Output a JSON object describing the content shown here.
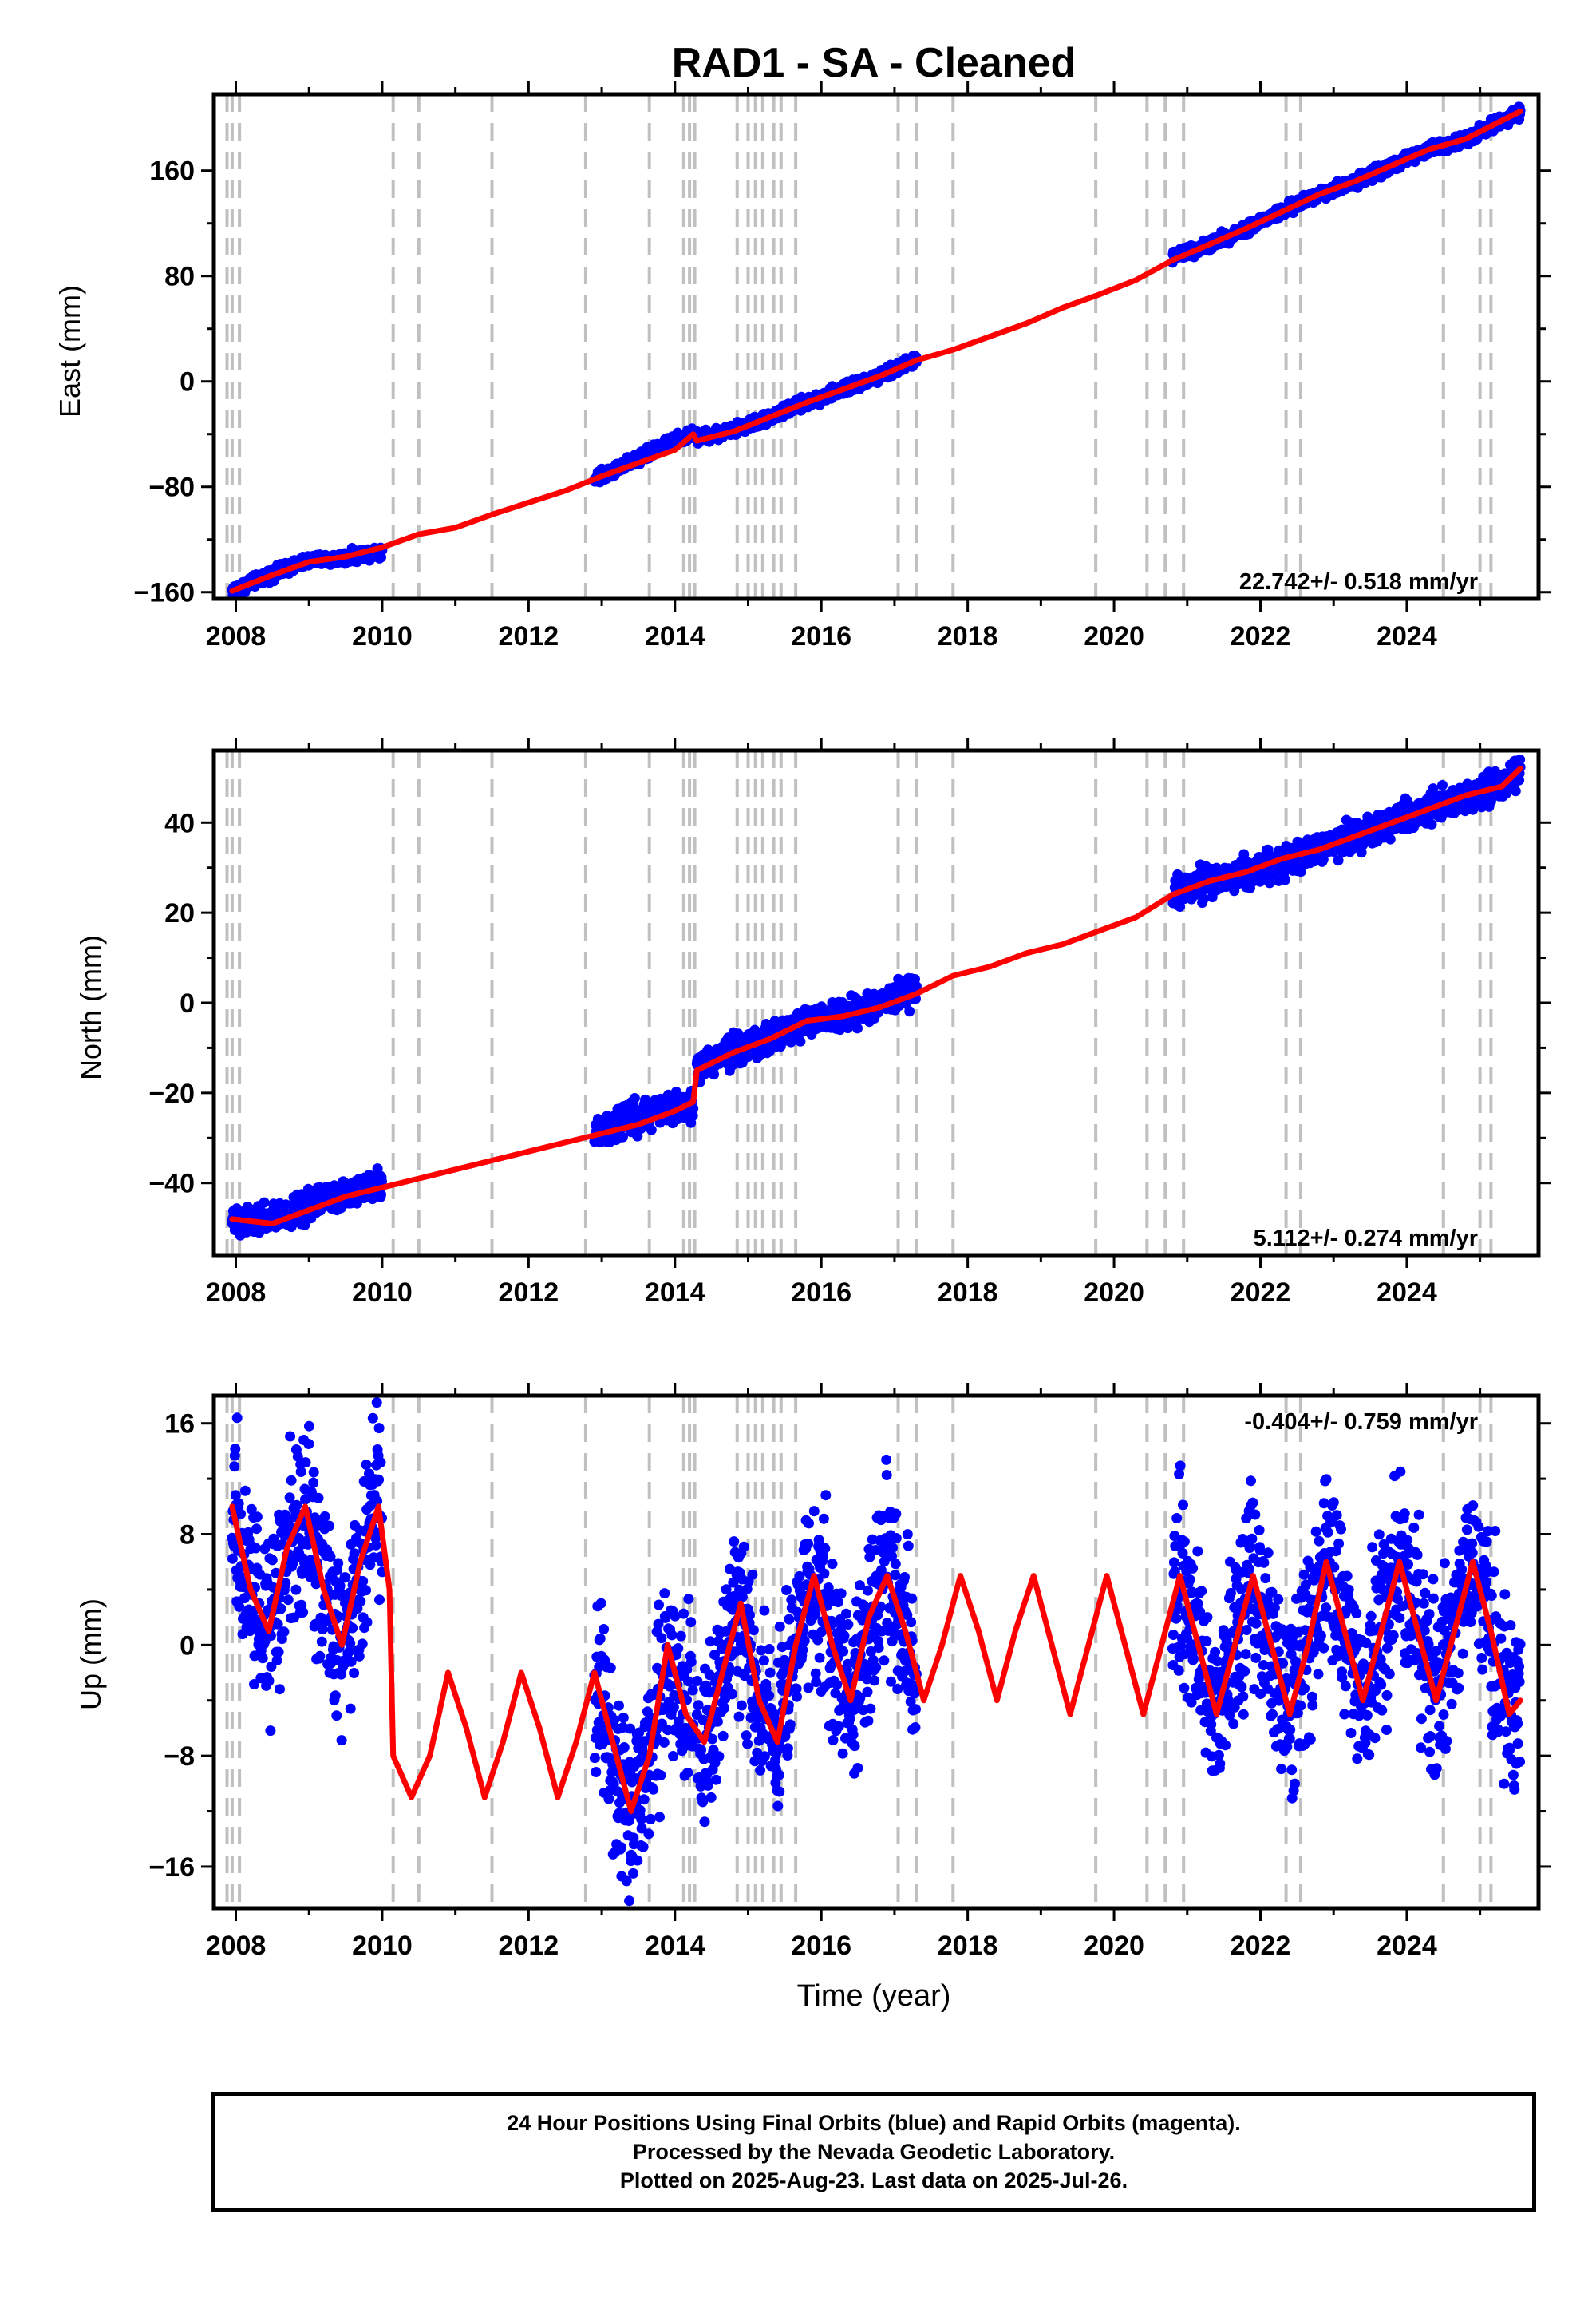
{
  "title": "RAD1  - SA - Cleaned",
  "colors": {
    "final_orbits": "#0000ff",
    "model": "#ff0000",
    "event_lines": "#c0c0c0"
  },
  "chart_data": [
    {
      "type": "scatter",
      "ylabel": "East (mm)",
      "xlabel": "",
      "rate_label": "22.742+/- 0.518 mm/yr",
      "rate_position": "bottom-right",
      "xlim": [
        2007.7,
        2025.8
      ],
      "ylim": [
        -165,
        218
      ],
      "x_ticks": [
        2008,
        2010,
        2012,
        2014,
        2016,
        2018,
        2020,
        2022,
        2024
      ],
      "x_tick_labels": [
        "2008",
        "2010",
        "2012",
        "2014",
        "2016",
        "2018",
        "2020",
        "2022",
        "2024"
      ],
      "y_ticks": [
        -160,
        -80,
        0,
        80,
        160
      ],
      "y_tick_labels": [
        "−160",
        "−80",
        "0",
        "80",
        "160"
      ],
      "series": [
        {
          "x": [
            2007.95,
            2008.5,
            2009.0,
            2009.5,
            2010.0
          ],
          "y": [
            -159,
            -146,
            -136,
            -134,
            -128
          ]
        },
        {
          "x": [
            2012.9,
            2013.3,
            2013.7,
            2014.0,
            2014.25
          ],
          "y": [
            -74,
            -63,
            -52,
            -45,
            -39
          ]
        },
        {
          "x": [
            2014.3,
            2014.8,
            2015.3,
            2015.8,
            2016.3,
            2016.8,
            2017.3
          ],
          "y": [
            -43,
            -37,
            -27,
            -16,
            -6,
            4,
            17
          ]
        },
        {
          "x": [
            2020.8,
            2021.3,
            2021.8,
            2022.3,
            2022.8,
            2023.3,
            2023.8,
            2024.3,
            2024.8,
            2025.3,
            2025.55
          ],
          "y": [
            94,
            104,
            116,
            129,
            142,
            152,
            164,
            176,
            184,
            198,
            205
          ]
        }
      ],
      "model": {
        "x": [
          2007.95,
          2008.5,
          2009.0,
          2009.5,
          2010.0,
          2010.5,
          2011.0,
          2011.5,
          2012.0,
          2012.5,
          2013.0,
          2013.5,
          2014.0,
          2014.25,
          2014.3,
          2014.8,
          2015.3,
          2015.8,
          2016.3,
          2016.8,
          2017.3,
          2017.8,
          2018.3,
          2018.8,
          2019.3,
          2019.8,
          2020.3,
          2020.8,
          2021.3,
          2021.8,
          2022.3,
          2022.8,
          2023.3,
          2023.8,
          2024.3,
          2024.8,
          2025.3,
          2025.55
        ],
        "y": [
          -159,
          -147,
          -137,
          -133,
          -126,
          -116,
          -111,
          -101,
          -92,
          -83,
          -72,
          -62,
          -52,
          -40,
          -45,
          -38,
          -27,
          -16,
          -6,
          4,
          16,
          24,
          34,
          44,
          56,
          66,
          77,
          92,
          104,
          116,
          129,
          142,
          152,
          164,
          176,
          184,
          198,
          205
        ]
      }
    },
    {
      "type": "scatter",
      "ylabel": "North (mm)",
      "xlabel": "",
      "rate_label": "5.112+/- 0.274 mm/yr",
      "rate_position": "bottom-right",
      "xlim": [
        2007.7,
        2025.8
      ],
      "ylim": [
        -56,
        56
      ],
      "x_ticks": [
        2008,
        2010,
        2012,
        2014,
        2016,
        2018,
        2020,
        2022,
        2024
      ],
      "x_tick_labels": [
        "2008",
        "2010",
        "2012",
        "2014",
        "2016",
        "2018",
        "2020",
        "2022",
        "2024"
      ],
      "y_ticks": [
        -40,
        -20,
        0,
        20,
        40
      ],
      "y_tick_labels": [
        "−40",
        "−20",
        "0",
        "20",
        "40"
      ],
      "series": [
        {
          "x": [
            2007.95,
            2008.5,
            2009.0,
            2009.5,
            2010.0
          ],
          "y": [
            -48,
            -48,
            -45,
            -42,
            -40
          ]
        },
        {
          "x": [
            2012.9,
            2013.3,
            2013.7,
            2014.0,
            2014.25
          ],
          "y": [
            -29,
            -26,
            -24,
            -23,
            -23
          ]
        },
        {
          "x": [
            2014.3,
            2014.8,
            2015.3,
            2015.8,
            2016.3,
            2016.8,
            2017.3
          ],
          "y": [
            -14,
            -11,
            -8,
            -4,
            -3,
            0,
            3
          ]
        },
        {
          "x": [
            2020.8,
            2021.3,
            2021.8,
            2022.3,
            2022.8,
            2023.3,
            2023.8,
            2024.3,
            2024.8,
            2025.3,
            2025.55
          ],
          "y": [
            24,
            27,
            29,
            31,
            34,
            37,
            40,
            43,
            46,
            48,
            51
          ]
        }
      ],
      "model": {
        "x": [
          2007.95,
          2008.5,
          2009.0,
          2009.5,
          2010.0,
          2010.5,
          2011.0,
          2011.5,
          2012.0,
          2012.5,
          2013.0,
          2013.5,
          2014.0,
          2014.25,
          2014.3,
          2014.8,
          2015.3,
          2015.8,
          2016.3,
          2016.8,
          2017.3,
          2017.8,
          2018.3,
          2018.8,
          2019.3,
          2019.8,
          2020.3,
          2020.8,
          2021.3,
          2021.8,
          2022.3,
          2022.8,
          2023.3,
          2023.8,
          2024.3,
          2024.8,
          2025.3,
          2025.55
        ],
        "y": [
          -48,
          -49,
          -46,
          -43,
          -41,
          -39,
          -37,
          -35,
          -33,
          -31,
          -29,
          -27,
          -24,
          -22,
          -15,
          -11,
          -8,
          -4,
          -3,
          -1,
          2,
          6,
          8,
          11,
          13,
          16,
          19,
          24,
          27,
          29,
          32,
          34,
          37,
          40,
          43,
          46,
          48,
          52
        ]
      }
    },
    {
      "type": "scatter",
      "ylabel": "Up (mm)",
      "xlabel": "Time (year)",
      "rate_label": "-0.404+/- 0.759 mm/yr",
      "rate_position": "top-right",
      "xlim": [
        2007.7,
        2025.8
      ],
      "ylim": [
        -19,
        18
      ],
      "x_ticks": [
        2008,
        2010,
        2012,
        2014,
        2016,
        2018,
        2020,
        2022,
        2024
      ],
      "x_tick_labels": [
        "2008",
        "2010",
        "2012",
        "2014",
        "2016",
        "2018",
        "2020",
        "2022",
        "2024"
      ],
      "y_ticks": [
        -16,
        -8,
        0,
        8,
        16
      ],
      "y_tick_labels": [
        "−16",
        "−8",
        "0",
        "8",
        "16"
      ],
      "series": [
        {
          "x": [
            2007.95,
            2008.25,
            2008.5,
            2008.75,
            2009.0,
            2009.25,
            2009.5,
            2009.75,
            2010.0
          ],
          "y": [
            9,
            4,
            1,
            6,
            10,
            4,
            0,
            5,
            9
          ]
        },
        {
          "x": [
            2012.9,
            2013.2,
            2013.5,
            2013.8,
            2014.1,
            2014.25
          ],
          "y": [
            -3,
            -9,
            -12,
            -4,
            2,
            -5
          ]
        },
        {
          "x": [
            2014.3,
            2014.6,
            2014.9,
            2015.2,
            2015.5,
            2015.8,
            2016.1,
            2016.4,
            2016.7,
            2017.0,
            2017.3
          ],
          "y": [
            -7,
            -2,
            2,
            -6,
            -3,
            5,
            2,
            -4,
            4,
            2,
            -4
          ]
        },
        {
          "x": [
            2020.8,
            2021.1,
            2021.4,
            2021.7,
            2022.0,
            2022.3,
            2022.6,
            2022.9,
            2023.2,
            2023.5,
            2023.8,
            2024.1,
            2024.4,
            2024.7,
            2025.0,
            2025.3,
            2025.55
          ],
          "y": [
            4,
            0,
            -5,
            3,
            4,
            -3,
            -5,
            5,
            2,
            -4,
            4,
            2,
            -5,
            4,
            3,
            -4,
            -4
          ]
        }
      ],
      "model": {
        "x": [
          2007.95,
          2008.2,
          2008.45,
          2008.7,
          2008.95,
          2009.2,
          2009.45,
          2009.7,
          2009.95,
          2010.1,
          2010.15,
          2010.4,
          2010.65,
          2010.9,
          2011.15,
          2011.4,
          2011.65,
          2011.9,
          2012.15,
          2012.4,
          2012.65,
          2012.9,
          2013.15,
          2013.4,
          2013.65,
          2013.9,
          2014.15,
          2014.4,
          2014.65,
          2014.9,
          2015.15,
          2015.4,
          2015.65,
          2015.9,
          2016.15,
          2016.4,
          2016.65,
          2016.9,
          2017.15,
          2017.4,
          2017.65,
          2017.9,
          2018.15,
          2018.4,
          2018.65,
          2018.9,
          2019.15,
          2019.4,
          2019.65,
          2019.9,
          2020.15,
          2020.4,
          2020.65,
          2020.9,
          2021.15,
          2021.4,
          2021.65,
          2021.9,
          2022.15,
          2022.4,
          2022.65,
          2022.9,
          2023.15,
          2023.4,
          2023.65,
          2023.9,
          2024.15,
          2024.4,
          2024.65,
          2024.9,
          2025.15,
          2025.4,
          2025.55
        ],
        "y": [
          10,
          4,
          1,
          7,
          10,
          4,
          0,
          6,
          10,
          4,
          -8,
          -11,
          -8,
          -2,
          -6,
          -11,
          -7,
          -2,
          -6,
          -11,
          -7,
          -2,
          -7,
          -12,
          -8,
          0,
          -5,
          -7,
          -2,
          3,
          -4,
          -7,
          0,
          5,
          0,
          -4,
          2,
          5,
          1,
          -4,
          0,
          5,
          1,
          -4,
          1,
          5,
          0,
          -5,
          0,
          5,
          0,
          -5,
          0,
          5,
          0,
          -5,
          0,
          5,
          0,
          -5,
          0,
          6,
          1,
          -4,
          1,
          6,
          1,
          -4,
          1,
          6,
          1,
          -5,
          -4
        ]
      }
    }
  ],
  "event_lines_x": [
    2007.88,
    2007.95,
    2008.05,
    2010.15,
    2010.5,
    2011.5,
    2012.78,
    2013.65,
    2014.12,
    2014.2,
    2014.27,
    2014.85,
    2015.0,
    2015.1,
    2015.2,
    2015.35,
    2015.45,
    2015.65,
    2017.05,
    2017.3,
    2017.8,
    2019.75,
    2020.45,
    2020.7,
    2020.95,
    2022.35,
    2022.55,
    2024.5,
    2025.0,
    2025.15
  ],
  "footer": {
    "line1": "24 Hour Positions Using Final Orbits (blue) and Rapid Orbits (magenta).",
    "line2": "Processed by the Nevada Geodetic Laboratory.",
    "line3": "Plotted on 2025-Aug-23. Last data on 2025-Jul-26."
  }
}
